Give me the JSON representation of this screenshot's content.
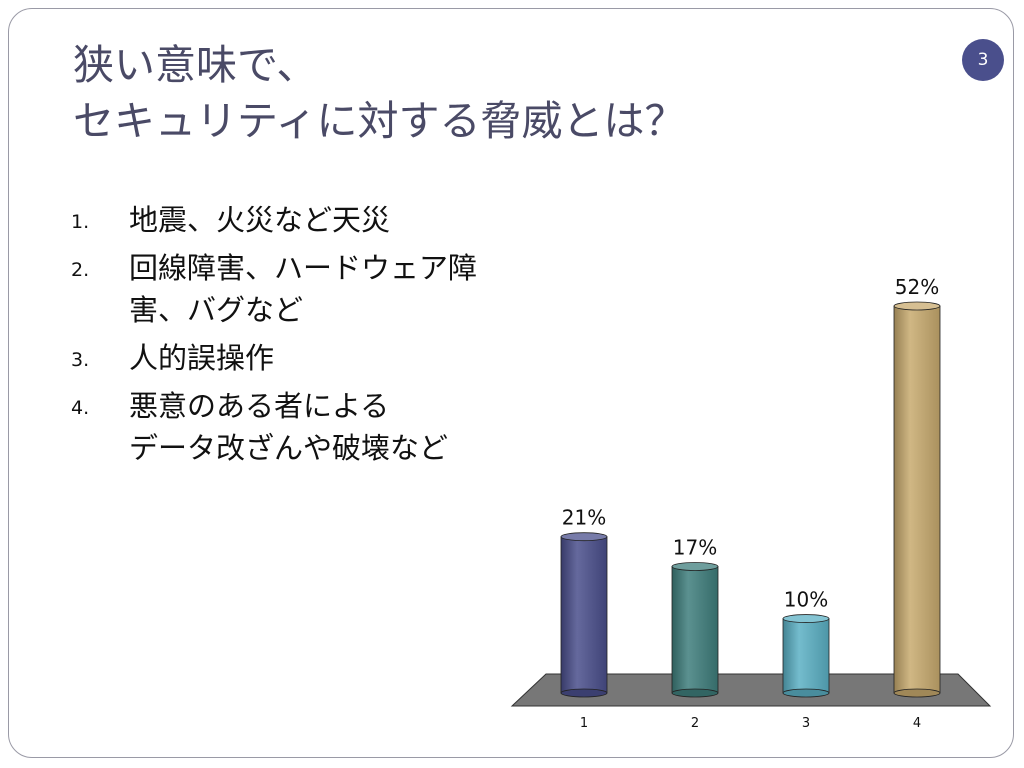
{
  "slide": {
    "page_number": "3",
    "title_lines": [
      "狭い意味で、",
      "セキュリティに対する脅威とは？"
    ],
    "items": [
      {
        "num": "1.",
        "text": "地震、火災など天災"
      },
      {
        "num": "2.",
        "text": "回線障害、ハードウェア障\n害、バグなど"
      },
      {
        "num": "3.",
        "text": "人的誤操作"
      },
      {
        "num": "4.",
        "text": "悪意のある者による\nデータ改ざんや破壊など"
      }
    ]
  },
  "chart_data": {
    "type": "bar",
    "categories": [
      "1",
      "2",
      "3",
      "4"
    ],
    "values": [
      21,
      17,
      10,
      52
    ],
    "data_labels": [
      "21%",
      "17%",
      "10%",
      "52%"
    ],
    "colors": [
      "#4a4f8c",
      "#3e7e7c",
      "#5bb0c4",
      "#c8aa6e"
    ],
    "floor_color": "#777777",
    "ylim": [
      0,
      52
    ],
    "grid": false,
    "legend": "none",
    "title": "",
    "xlabel": "",
    "ylabel": ""
  }
}
